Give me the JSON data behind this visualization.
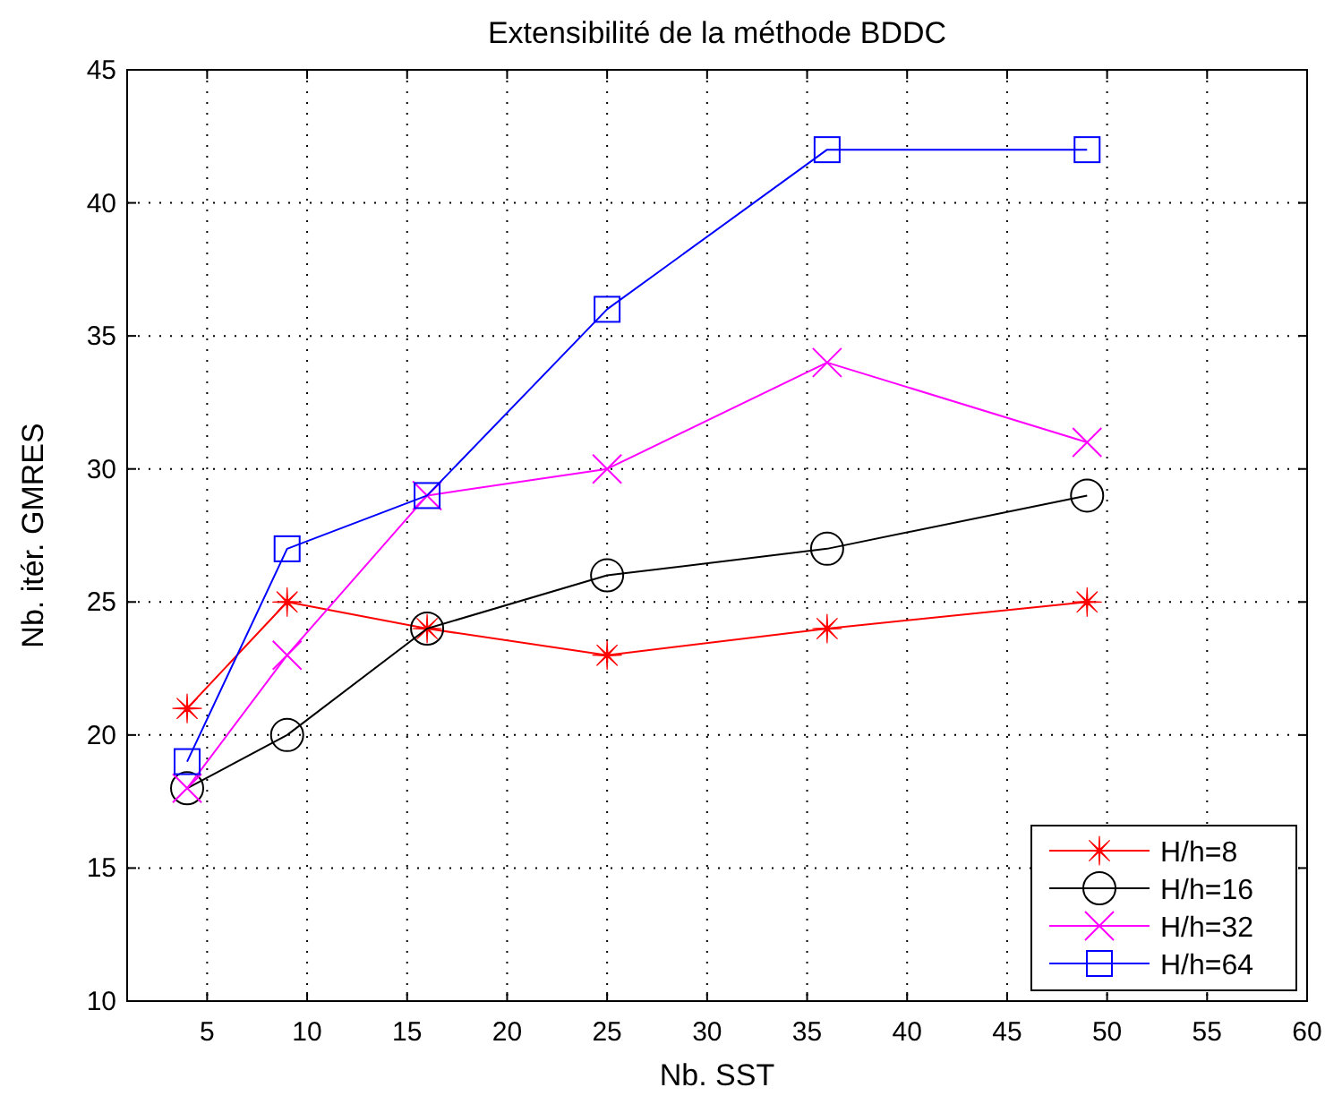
{
  "chart_data": {
    "type": "line",
    "title": "Extensibilité de la méthode BDDC",
    "xlabel": "Nb. SST",
    "ylabel": "Nb. itér. GMRES",
    "x": [
      4,
      9,
      16,
      25,
      36,
      49
    ],
    "series": [
      {
        "name": "H/h=8",
        "color": "#ff0000",
        "marker": "star",
        "values": [
          21,
          25,
          24,
          23,
          24,
          25
        ]
      },
      {
        "name": "H/h=16",
        "color": "#000000",
        "marker": "circle",
        "values": [
          18,
          20,
          24,
          26,
          27,
          29
        ]
      },
      {
        "name": "H/h=32",
        "color": "#ff00ff",
        "marker": "cross",
        "values": [
          18,
          23,
          29,
          30,
          34,
          31
        ]
      },
      {
        "name": "H/h=64",
        "color": "#0000ff",
        "marker": "square",
        "values": [
          19,
          27,
          29,
          36,
          42,
          42
        ]
      }
    ],
    "xlim": [
      1,
      60
    ],
    "xticks": [
      5,
      10,
      15,
      20,
      25,
      30,
      35,
      40,
      45,
      50,
      55,
      60
    ],
    "ylim": [
      10,
      45
    ],
    "yticks": [
      10,
      15,
      20,
      25,
      30,
      35,
      40,
      45
    ],
    "grid": true,
    "legend": "bottom right",
    "line_style": "solid"
  }
}
